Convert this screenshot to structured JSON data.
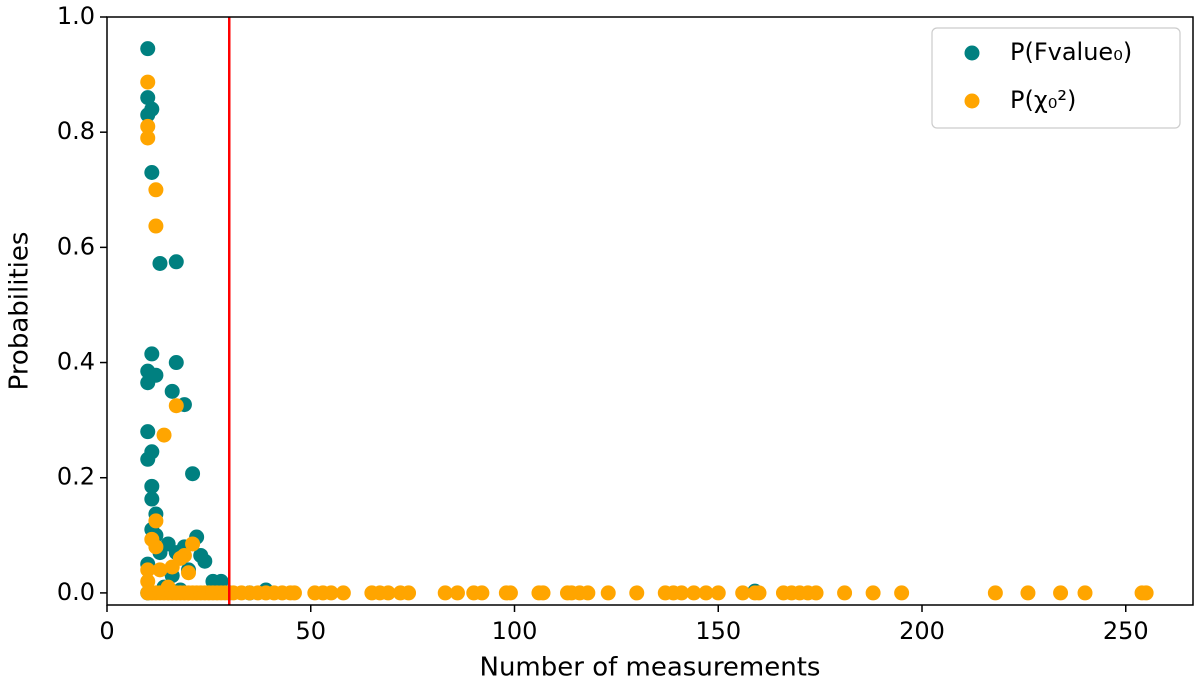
{
  "chart_data": {
    "type": "scatter",
    "xlabel": "Number of measurements",
    "ylabel": "Probabilities",
    "xlim": [
      0,
      266.5
    ],
    "ylim": [
      -0.021,
      1.0
    ],
    "xticks": [
      0,
      50,
      100,
      150,
      200,
      250
    ],
    "yticks": [
      {
        "value": 0,
        "label": "0.0"
      },
      0.2,
      0.4,
      0.6,
      0.8,
      {
        "value": 1,
        "label": "1.0"
      }
    ],
    "legend": "upper right",
    "vline": {
      "x": 30,
      "color": "#ff0000"
    },
    "series": [
      {
        "name": "P(Fvalue₀)",
        "color": "#008080",
        "x": [
          10,
          10,
          10,
          11,
          11,
          13,
          17,
          10,
          11,
          12,
          10,
          17,
          16,
          19,
          10,
          10,
          11,
          21,
          11,
          11,
          12,
          11,
          12,
          22,
          15,
          13,
          17,
          19,
          23,
          24,
          10,
          20,
          16,
          26,
          28,
          14,
          18,
          39,
          159,
          10,
          30,
          35
        ],
        "values": [
          0.945,
          0.86,
          0.83,
          0.84,
          0.73,
          0.572,
          0.575,
          0.385,
          0.415,
          0.378,
          0.365,
          0.4,
          0.35,
          0.327,
          0.28,
          0.232,
          0.245,
          0.207,
          0.185,
          0.163,
          0.137,
          0.11,
          0.1,
          0.097,
          0.085,
          0.07,
          0.07,
          0.08,
          0.065,
          0.055,
          0.05,
          0.04,
          0.03,
          0.02,
          0.02,
          0.01,
          0.005,
          0.005,
          0.003,
          0,
          0,
          0
        ]
      },
      {
        "name": "P(χ₀²)",
        "color": "#ffa500",
        "x": [
          10,
          10,
          10,
          12,
          12,
          17,
          14,
          12,
          11,
          12,
          13,
          10,
          21,
          19,
          18,
          16,
          20,
          10,
          15,
          10,
          11,
          12,
          13,
          14,
          15,
          16,
          17,
          18,
          19,
          20,
          21,
          22,
          23,
          24,
          25,
          26,
          27,
          28,
          29,
          31,
          33,
          35,
          37,
          39,
          41,
          43,
          45,
          46,
          51,
          53,
          55,
          58,
          65,
          67,
          69,
          72,
          74,
          83,
          86,
          90,
          92,
          98,
          99,
          106,
          107,
          113,
          114,
          116,
          118,
          123,
          130,
          137,
          139,
          141,
          144,
          147,
          150,
          156,
          159,
          160,
          166,
          168,
          170,
          172,
          174,
          181,
          188,
          195,
          218,
          226,
          234,
          240,
          254,
          255
        ],
        "values": [
          0.887,
          0.81,
          0.79,
          0.7,
          0.637,
          0.325,
          0.274,
          0.125,
          0.093,
          0.08,
          0.04,
          0.04,
          0.085,
          0.065,
          0.06,
          0.045,
          0.035,
          0.02,
          0.01,
          0,
          0,
          0,
          0,
          0,
          0,
          0,
          0,
          0,
          0,
          0,
          0,
          0,
          0,
          0,
          0,
          0,
          0,
          0,
          0,
          0,
          0,
          0,
          0,
          0,
          0,
          0,
          0,
          0,
          0,
          0,
          0,
          0,
          0,
          0,
          0,
          0,
          0,
          0,
          0,
          0,
          0,
          0,
          0,
          0,
          0,
          0,
          0,
          0,
          0,
          0,
          0,
          0,
          0,
          0,
          0,
          0,
          0,
          0,
          0,
          0,
          0,
          0,
          0,
          0,
          0,
          0,
          0,
          0,
          0,
          0,
          0,
          0,
          0,
          0
        ]
      }
    ]
  }
}
